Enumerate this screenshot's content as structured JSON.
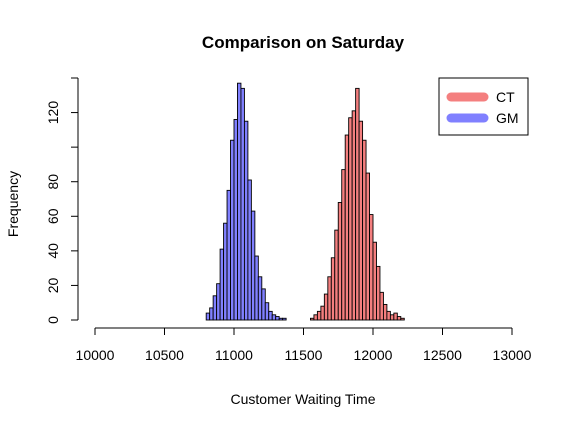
{
  "chart_data": {
    "type": "histogram",
    "title": "Comparison on Saturday",
    "xlabel": "Customer Waiting Time",
    "ylabel": "Frequency",
    "xlim": [
      10000,
      13000
    ],
    "ylim": [
      0,
      140
    ],
    "x_ticks": [
      10000,
      10500,
      11000,
      11500,
      12000,
      12500,
      13000
    ],
    "y_ticks": [
      0,
      20,
      40,
      60,
      80,
      120
    ],
    "bin_width": 25,
    "legend_position": "top-right",
    "series": [
      {
        "name": "GM",
        "color": "#8080ff",
        "bin_start": 10800,
        "counts": [
          4,
          7,
          14,
          21,
          41,
          56,
          75,
          104,
          116,
          137,
          134,
          115,
          81,
          63,
          37,
          25,
          18,
          10,
          5,
          3,
          2,
          1,
          1
        ]
      },
      {
        "name": "CT",
        "color": "#f47f7f",
        "bin_start": 11550,
        "counts": [
          1,
          3,
          5,
          8,
          15,
          25,
          36,
          52,
          68,
          87,
          107,
          117,
          121,
          134,
          115,
          104,
          85,
          61,
          45,
          31,
          16,
          9,
          5,
          3,
          4,
          2,
          1
        ]
      }
    ]
  }
}
